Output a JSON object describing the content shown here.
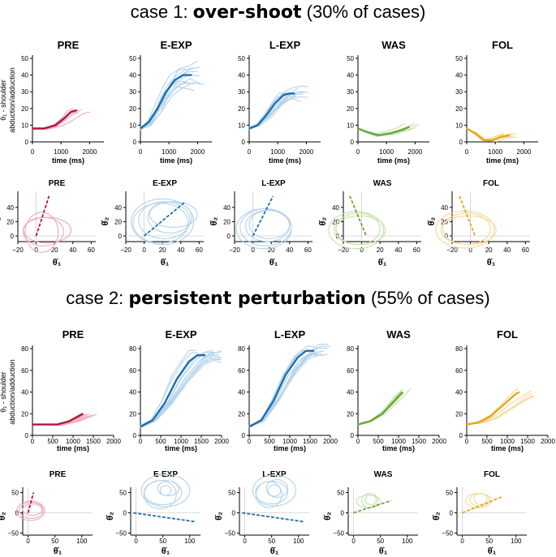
{
  "sections": [
    {
      "prefix": "case 1: ",
      "emph": "over-shoot",
      "suffix": " (30% of cases)"
    },
    {
      "prefix": "case 2: ",
      "emph": "persistent perturbation",
      "suffix": " (55% of cases)"
    }
  ],
  "labels": {
    "ylabel_line1": "θ₁ - shoulder",
    "ylabel_line2": "abduction/adduction",
    "xlabel_time": "time (ms)",
    "phase_x": "θ̇₁",
    "phase_y": "θ̇₂"
  },
  "colors": {
    "PRE": {
      "light": "#e9a9ba",
      "dark": "#b5153a"
    },
    "E-EXP": {
      "light": "#b4d3ea",
      "dark": "#1c6fae"
    },
    "L-EXP": {
      "light": "#b4d3ea",
      "dark": "#1c6fae"
    },
    "WAS": {
      "light": "#c6e0a8",
      "dark": "#67a83a"
    },
    "FOL": {
      "light": "#f6d79a",
      "dark": "#e3a919"
    }
  },
  "chart_data": [
    {
      "type": "line",
      "section": 0,
      "row": "time",
      "xlabel": "time (ms)",
      "ylabel": "θ₁ - shoulder abduction/adduction",
      "xlim": [
        0,
        2500
      ],
      "xticks": [
        "0",
        "1000",
        "2000"
      ],
      "panels": [
        {
          "title": "PRE",
          "ylim": [
            0,
            50
          ],
          "yticks": [
            "0",
            "10",
            "20",
            "30",
            "40",
            "50"
          ],
          "mean": {
            "x": [
              0,
              400,
              800,
              1100,
              1350,
              1550
            ],
            "y": [
              8,
              8,
              10,
              14,
              18,
              19
            ]
          },
          "trials": 6,
          "spread": 2
        },
        {
          "title": "E-EXP",
          "ylim": [
            0,
            50
          ],
          "yticks": [
            "0",
            "10",
            "20",
            "30",
            "40",
            "50"
          ],
          "mean": {
            "x": [
              0,
              300,
              600,
              900,
              1200,
              1500,
              1800
            ],
            "y": [
              8,
              12,
              20,
              30,
              37,
              40,
              40
            ]
          },
          "trials": 12,
          "spread": 8
        },
        {
          "title": "L-EXP",
          "ylim": [
            0,
            50
          ],
          "yticks": [
            "0",
            "10",
            "20",
            "30",
            "40",
            "50"
          ],
          "mean": {
            "x": [
              0,
              300,
              600,
              900,
              1200,
              1400,
              1600
            ],
            "y": [
              8,
              10,
              16,
              23,
              28,
              29,
              29
            ]
          },
          "trials": 12,
          "spread": 5
        },
        {
          "title": "WAS",
          "ylim": [
            0,
            50
          ],
          "yticks": [
            "0",
            "10",
            "20",
            "30",
            "40",
            "50"
          ],
          "mean": {
            "x": [
              0,
              300,
              700,
              1100,
              1500,
              1800
            ],
            "y": [
              8,
              6,
              4,
              5,
              7,
              9
            ]
          },
          "trials": 6,
          "spread": 2
        },
        {
          "title": "FOL",
          "ylim": [
            0,
            50
          ],
          "yticks": [
            "0",
            "10",
            "20",
            "30",
            "40",
            "50"
          ],
          "mean": {
            "x": [
              0,
              300,
              600,
              900,
              1200,
              1500
            ],
            "y": [
              8,
              5,
              1,
              1,
              3,
              4
            ]
          },
          "trials": 6,
          "spread": 2
        }
      ]
    },
    {
      "type": "scatter",
      "section": 0,
      "row": "phase",
      "xlabel": "θ̇₁",
      "ylabel": "θ̇₂",
      "xlim": [
        -20,
        65
      ],
      "ylim": [
        -8,
        58
      ],
      "xticks": [
        "−20",
        "0",
        "20",
        "40",
        "60"
      ],
      "yticks": [
        "0",
        "20",
        "40"
      ],
      "panels": [
        {
          "title": "PRE",
          "fit": [
            [
              0,
              0
            ],
            [
              14,
              56
            ]
          ],
          "loops": [
            [
              8,
              22,
              6,
              20
            ],
            [
              12,
              26,
              8,
              18
            ],
            [
              6,
              18,
              5,
              28
            ]
          ]
        },
        {
          "title": "E-EXP",
          "fit": [
            [
              0,
              0
            ],
            [
              45,
              48
            ]
          ],
          "loops": [
            [
              22,
              28,
              22,
              26
            ],
            [
              28,
              24,
              26,
              22
            ],
            [
              18,
              30,
              18,
              28
            ],
            [
              32,
              26,
              30,
              18
            ],
            [
              20,
              34,
              20,
              32
            ]
          ]
        },
        {
          "title": "L-EXP",
          "fit": [
            [
              0,
              0
            ],
            [
              22,
              56
            ]
          ],
          "loops": [
            [
              14,
              28,
              12,
              26
            ],
            [
              16,
              24,
              14,
              22
            ],
            [
              12,
              30,
              10,
              28
            ],
            [
              18,
              22,
              16,
              20
            ]
          ]
        },
        {
          "title": "WAS",
          "fit": [
            [
              -13,
              56
            ],
            [
              5,
              0
            ]
          ],
          "loops": [
            [
              -4,
              24,
              10,
              22
            ],
            [
              -2,
              28,
              8,
              20
            ],
            [
              -6,
              30,
              8,
              26
            ]
          ]
        },
        {
          "title": "FOL",
          "fit": [
            [
              -12,
              56
            ],
            [
              5,
              0
            ]
          ],
          "loops": [
            [
              -4,
              26,
              10,
              22
            ],
            [
              -2,
              30,
              8,
              20
            ],
            [
              -6,
              32,
              9,
              26
            ]
          ]
        }
      ]
    },
    {
      "type": "line",
      "section": 1,
      "row": "time",
      "xlabel": "time (ms)",
      "ylabel": "θ₁ - shoulder abduction/adduction",
      "xlim": [
        0,
        2000
      ],
      "xticks": [
        "0",
        "500",
        "1000",
        "1500",
        "2000"
      ],
      "panels": [
        {
          "title": "PRE",
          "ylim": [
            0,
            80
          ],
          "yticks": [
            "0",
            "20",
            "40",
            "60",
            "80"
          ],
          "mean": {
            "x": [
              0,
              300,
              600,
              900,
              1150,
              1250
            ],
            "y": [
              10,
              10,
              10,
              13,
              18,
              20
            ]
          },
          "trials": 6,
          "spread": 2
        },
        {
          "title": "E-EXP",
          "ylim": [
            0,
            80
          ],
          "yticks": [
            "0",
            "20",
            "40",
            "60",
            "80"
          ],
          "mean": {
            "x": [
              0,
              300,
              600,
              900,
              1200,
              1400,
              1600
            ],
            "y": [
              8,
              14,
              30,
              52,
              68,
              74,
              74
            ]
          },
          "trials": 12,
          "spread": 7
        },
        {
          "title": "L-EXP",
          "ylim": [
            0,
            80
          ],
          "yticks": [
            "0",
            "20",
            "40",
            "60",
            "80"
          ],
          "mean": {
            "x": [
              0,
              300,
              600,
              900,
              1200,
              1400,
              1600
            ],
            "y": [
              8,
              14,
              32,
              56,
              72,
              78,
              78
            ]
          },
          "trials": 12,
          "spread": 6
        },
        {
          "title": "WAS",
          "ylim": [
            0,
            80
          ],
          "yticks": [
            "0",
            "20",
            "40",
            "60",
            "80"
          ],
          "mean": {
            "x": [
              0,
              300,
              600,
              900,
              1100
            ],
            "y": [
              10,
              13,
              20,
              32,
              40
            ]
          },
          "trials": 6,
          "spread": 5
        },
        {
          "title": "FOL",
          "ylim": [
            0,
            80
          ],
          "yticks": [
            "0",
            "20",
            "40",
            "60",
            "80"
          ],
          "mean": {
            "x": [
              0,
              300,
              600,
              900,
              1200,
              1300
            ],
            "y": [
              10,
              12,
              18,
              28,
              38,
              40
            ]
          },
          "trials": 6,
          "spread": 5
        }
      ]
    },
    {
      "type": "scatter",
      "section": 1,
      "row": "phase",
      "xlabel": "θ̇₁",
      "ylabel": "θ̇₂",
      "xlim": [
        -10,
        120
      ],
      "ylim": [
        -55,
        55
      ],
      "xticks": [
        "0",
        "50",
        "100"
      ],
      "yticks": [
        "−50",
        "0",
        "50"
      ],
      "panels": [
        {
          "title": "PRE",
          "fit": [
            [
              0,
              0
            ],
            [
              10,
              50
            ]
          ],
          "loops": [
            [
              6,
              22,
              6,
              20
            ],
            [
              8,
              18,
              8,
              14
            ],
            [
              5,
              26,
              5,
              24
            ]
          ]
        },
        {
          "title": "E-EXP",
          "fit": [
            [
              -5,
              0
            ],
            [
              110,
              -22
            ]
          ],
          "loops": [
            [
              55,
              45,
              55,
              40
            ],
            [
              50,
              35,
              50,
              30
            ],
            [
              60,
              20,
              60,
              18
            ],
            [
              45,
              30,
              45,
              35
            ],
            [
              55,
              10,
              55,
              12
            ]
          ]
        },
        {
          "title": "L-EXP",
          "fit": [
            [
              -5,
              0
            ],
            [
              110,
              -22
            ]
          ],
          "loops": [
            [
              55,
              40,
              55,
              38
            ],
            [
              50,
              30,
              50,
              28
            ],
            [
              60,
              20,
              60,
              22
            ],
            [
              45,
              24,
              45,
              32
            ],
            [
              55,
              12,
              55,
              14
            ]
          ]
        },
        {
          "title": "WAS",
          "fit": [
            [
              0,
              0
            ],
            [
              70,
              30
            ]
          ],
          "loops": [
            [
              30,
              15,
              30,
              18
            ],
            [
              28,
              22,
              28,
              16
            ],
            [
              32,
              10,
              32,
              12
            ]
          ]
        },
        {
          "title": "FOL",
          "fit": [
            [
              0,
              0
            ],
            [
              75,
              40
            ]
          ],
          "loops": [
            [
              32,
              18,
              32,
              16
            ],
            [
              30,
              24,
              30,
              18
            ],
            [
              34,
              12,
              34,
              14
            ]
          ]
        }
      ]
    }
  ]
}
